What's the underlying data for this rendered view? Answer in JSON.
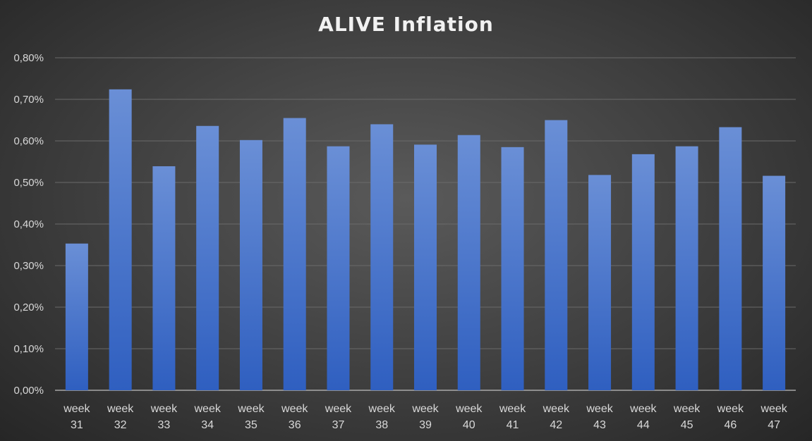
{
  "chart_data": {
    "type": "bar",
    "title": "ALIVE Inflation",
    "categories": [
      [
        "week",
        "31"
      ],
      [
        "week",
        "32"
      ],
      [
        "week",
        "33"
      ],
      [
        "week",
        "34"
      ],
      [
        "week",
        "35"
      ],
      [
        "week",
        "36"
      ],
      [
        "week",
        "37"
      ],
      [
        "week",
        "38"
      ],
      [
        "week",
        "39"
      ],
      [
        "week",
        "40"
      ],
      [
        "week",
        "41"
      ],
      [
        "week",
        "42"
      ],
      [
        "week",
        "43"
      ],
      [
        "week",
        "44"
      ],
      [
        "week",
        "45"
      ],
      [
        "week",
        "46"
      ],
      [
        "week",
        "47"
      ]
    ],
    "values": [
      0.353,
      0.724,
      0.539,
      0.636,
      0.602,
      0.655,
      0.587,
      0.64,
      0.591,
      0.614,
      0.585,
      0.65,
      0.518,
      0.568,
      0.587,
      0.633,
      0.516
    ],
    "value_unit": "%",
    "ylim": [
      0,
      0.8
    ],
    "yticks": [
      0,
      0.1,
      0.2,
      0.3,
      0.4,
      0.5,
      0.6,
      0.7,
      0.8
    ],
    "ytick_labels": [
      "0,00%",
      "0,10%",
      "0,20%",
      "0,30%",
      "0,40%",
      "0,50%",
      "0,60%",
      "0,70%",
      "0,80%"
    ],
    "xlabel": "",
    "ylabel": "",
    "grid": true,
    "legend": "none",
    "bar_color_top": "#6a8fd6",
    "bar_color_bottom": "#2f5fc0"
  }
}
